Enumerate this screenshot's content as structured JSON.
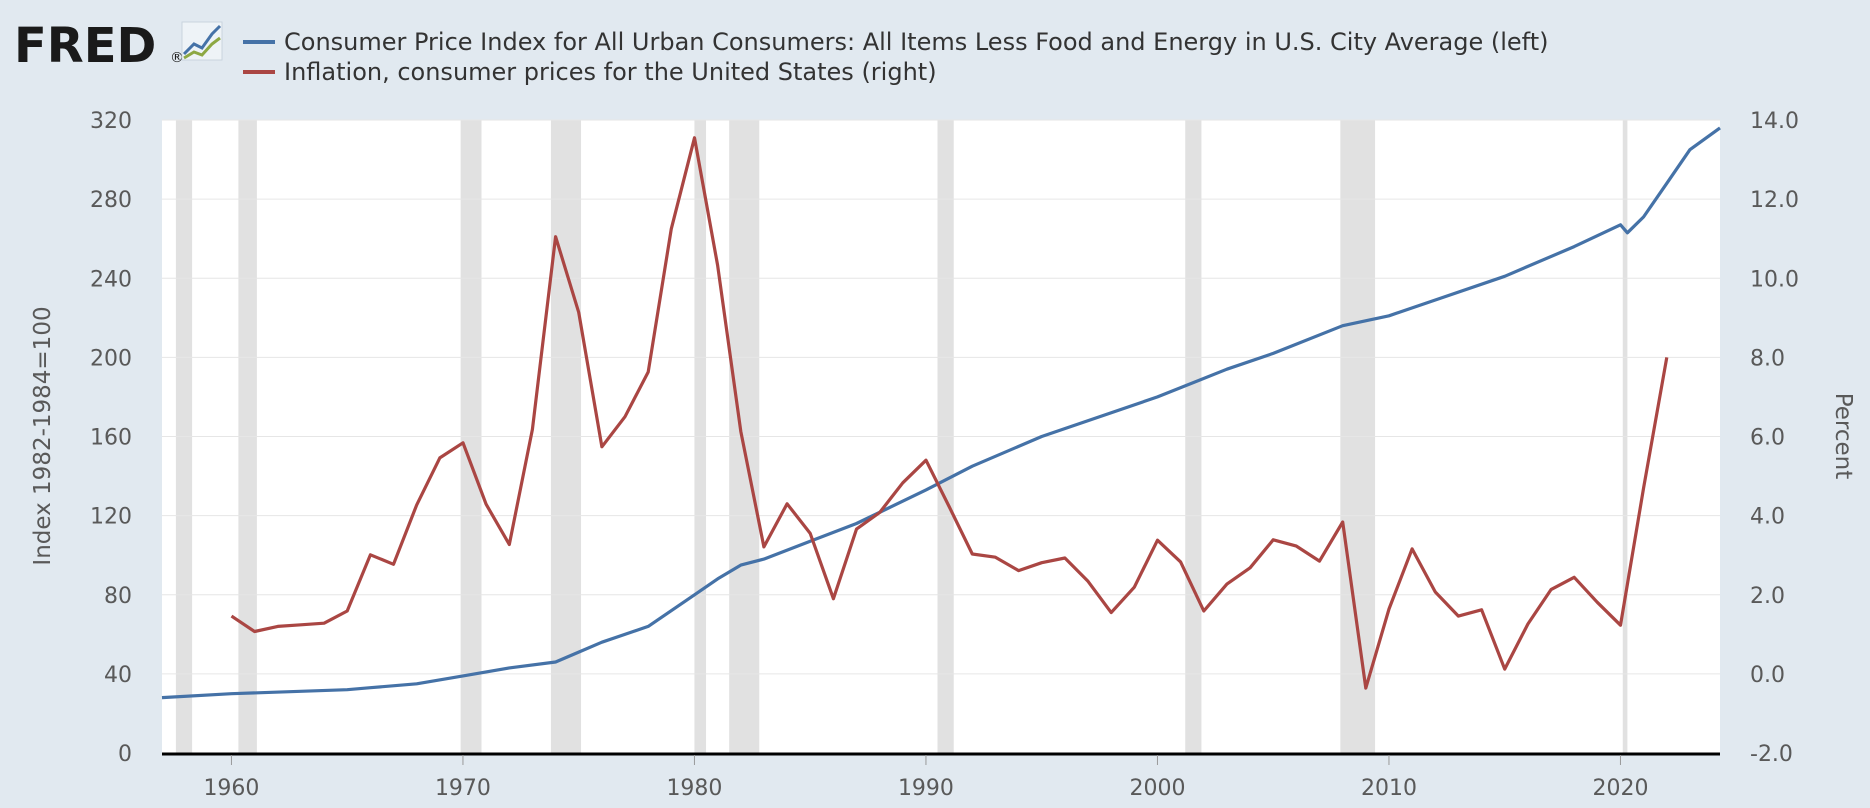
{
  "logo": {
    "text": "FRED",
    "registered": "®"
  },
  "colors": {
    "background": "#e1e9f0",
    "plot": "#ffffff",
    "grid": "#e6e6e6",
    "recession": "#e1e1e1",
    "core_cpi": "#4572a7",
    "inflation": "#aa4643",
    "axis": "#000000"
  },
  "chart_data": {
    "type": "line",
    "legend_placement": "top-left",
    "grid": true,
    "xlim": [
      1957.0,
      2024.3
    ],
    "x_ticks": [
      "1960",
      "1970",
      "1980",
      "1990",
      "2000",
      "2010",
      "2020"
    ],
    "y_left": {
      "label": "Index 1982-1984=100",
      "ylim": [
        0,
        320
      ],
      "ticks": [
        "0",
        "40",
        "80",
        "120",
        "160",
        "200",
        "240",
        "280",
        "320"
      ]
    },
    "y_right": {
      "label": "Percent",
      "ylim": [
        -2,
        14
      ],
      "ticks": [
        "-2.0",
        "0.0",
        "2.0",
        "4.0",
        "6.0",
        "8.0",
        "10.0",
        "12.0",
        "14.0"
      ]
    },
    "recessions": [
      [
        1957.6,
        1958.3
      ],
      [
        1960.3,
        1961.1
      ],
      [
        1969.9,
        1970.8
      ],
      [
        1973.8,
        1975.1
      ],
      [
        1980.0,
        1980.5
      ],
      [
        1981.5,
        1982.8
      ],
      [
        1990.5,
        1991.2
      ],
      [
        2001.2,
        2001.9
      ],
      [
        2007.9,
        2009.4
      ],
      [
        2020.1,
        2020.3
      ]
    ],
    "series": [
      {
        "name": "Consumer Price Index for All Urban Consumers: All Items Less Food and Energy in U.S. City Average (left)",
        "axis": "left",
        "x": [
          1957,
          1960,
          1965,
          1966,
          1968,
          1970,
          1972,
          1974,
          1975,
          1976,
          1978,
          1980,
          1981,
          1982,
          1983,
          1985,
          1987,
          1990,
          1992,
          1995,
          2000,
          2003,
          2005,
          2008,
          2010,
          2012,
          2015,
          2018,
          2020,
          2020.3,
          2021,
          2022,
          2023,
          2024.3
        ],
        "y": [
          28,
          30,
          32,
          33,
          35,
          39,
          43,
          46,
          51,
          56,
          64,
          80,
          88,
          95,
          98,
          107,
          116,
          133,
          145,
          160,
          180,
          194,
          202,
          216,
          221,
          229,
          241,
          256,
          267,
          263,
          271,
          288,
          305,
          316
        ]
      },
      {
        "name": "Inflation, consumer prices for the United States (right)",
        "axis": "right",
        "x": [
          1960,
          1961,
          1962,
          1963,
          1964,
          1965,
          1966,
          1967,
          1968,
          1969,
          1970,
          1971,
          1972,
          1973,
          1974,
          1975,
          1976,
          1977,
          1978,
          1979,
          1980,
          1981,
          1982,
          1983,
          1984,
          1985,
          1986,
          1987,
          1988,
          1989,
          1990,
          1991,
          1992,
          1993,
          1994,
          1995,
          1996,
          1997,
          1998,
          1999,
          2000,
          2001,
          2002,
          2003,
          2004,
          2005,
          2006,
          2007,
          2008,
          2009,
          2010,
          2011,
          2012,
          2013,
          2014,
          2015,
          2016,
          2017,
          2018,
          2019,
          2020,
          2021,
          2022
        ],
        "y": [
          1.46,
          1.07,
          1.2,
          1.24,
          1.28,
          1.59,
          3.01,
          2.77,
          4.27,
          5.46,
          5.84,
          4.29,
          3.27,
          6.18,
          11.05,
          9.14,
          5.74,
          6.5,
          7.63,
          11.25,
          13.55,
          10.33,
          6.13,
          3.21,
          4.3,
          3.55,
          1.9,
          3.66,
          4.08,
          4.83,
          5.4,
          4.23,
          3.03,
          2.95,
          2.61,
          2.81,
          2.93,
          2.34,
          1.55,
          2.19,
          3.38,
          2.83,
          1.59,
          2.27,
          2.68,
          3.39,
          3.23,
          2.85,
          3.84,
          -0.36,
          1.64,
          3.16,
          2.07,
          1.46,
          1.62,
          0.12,
          1.26,
          2.13,
          2.44,
          1.81,
          1.23,
          4.7,
          8.0
        ]
      }
    ]
  }
}
